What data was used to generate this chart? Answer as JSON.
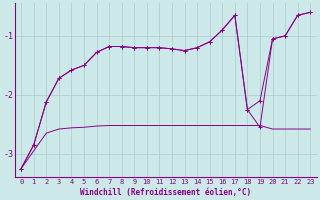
{
  "xlabel": "Windchill (Refroidissement éolien,°C)",
  "bg_color": "#cce8e8",
  "line_color": "#880088",
  "grid_color": "#aacccc",
  "xlim": [
    -0.5,
    23.5
  ],
  "ylim": [
    -3.4,
    -0.45
  ],
  "yticks": [
    -3,
    -2,
    -1
  ],
  "xticks": [
    0,
    1,
    2,
    3,
    4,
    5,
    6,
    7,
    8,
    9,
    10,
    11,
    12,
    13,
    14,
    15,
    16,
    17,
    18,
    19,
    20,
    21,
    22,
    23
  ],
  "s1_x": [
    0,
    1,
    2,
    3,
    4,
    5,
    6,
    7,
    8,
    9,
    10,
    11,
    12,
    13,
    14,
    15,
    16,
    17,
    18,
    19,
    20,
    21,
    22,
    23
  ],
  "s1_y": [
    -3.25,
    -2.85,
    -2.12,
    -1.72,
    -1.58,
    -1.5,
    -1.28,
    -1.18,
    -1.18,
    -1.2,
    -1.2,
    -1.2,
    -1.22,
    -1.25,
    -1.2,
    -1.1,
    -0.9,
    -0.65,
    -2.25,
    -2.1,
    -1.05,
    -1.0,
    -0.65,
    -0.6
  ],
  "s2_x": [
    0,
    1,
    2,
    3,
    4,
    5,
    6,
    7,
    8,
    9,
    10,
    11,
    12,
    13,
    14,
    15,
    16,
    17,
    18,
    19,
    20,
    21,
    22,
    23
  ],
  "s2_y": [
    -3.25,
    -2.85,
    -2.12,
    -1.72,
    -1.58,
    -1.5,
    -1.28,
    -1.18,
    -1.18,
    -1.2,
    -1.2,
    -1.2,
    -1.22,
    -1.25,
    -1.2,
    -1.1,
    -0.9,
    -0.65,
    -2.25,
    -2.55,
    -1.05,
    -1.0,
    -0.65,
    -0.6
  ],
  "s3_x": [
    0,
    1,
    2,
    3,
    4,
    5,
    6,
    7,
    8,
    9,
    10,
    11,
    12,
    13,
    14,
    15,
    16,
    17,
    18,
    19,
    20,
    21,
    22,
    23
  ],
  "s3_y": [
    -3.25,
    -2.95,
    -2.65,
    -2.58,
    -2.56,
    -2.55,
    -2.53,
    -2.52,
    -2.52,
    -2.52,
    -2.52,
    -2.52,
    -2.52,
    -2.52,
    -2.52,
    -2.52,
    -2.52,
    -2.52,
    -2.52,
    -2.52,
    -2.58,
    -2.58,
    -2.58,
    -2.58
  ],
  "xlabel_fontsize": 5.5,
  "tick_fontsize": 5.0,
  "ytick_fontsize": 6.0
}
